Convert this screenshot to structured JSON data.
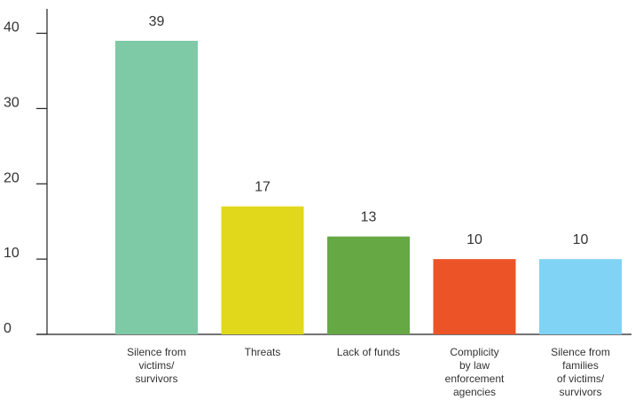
{
  "chart_data": {
    "type": "bar",
    "title": "",
    "xlabel": "",
    "ylabel": "",
    "ylim": [
      0,
      40
    ],
    "yticks": [
      0,
      10,
      20,
      30,
      40
    ],
    "grid": false,
    "categories": [
      "Silence from\nvictims/\nsurvivors",
      "Threats",
      "Lack of funds",
      "Complicity\nby law\nenforcement\nagencies",
      "Silence from\nfamilies\nof victims/\nsurvivors"
    ],
    "values": [
      39,
      17,
      13,
      10,
      10
    ],
    "data_labels": [
      "39",
      "17",
      "13",
      "10",
      "10"
    ],
    "colors": [
      "#7ecaa6",
      "#e2d81b",
      "#66a844",
      "#ec5427",
      "#80d3f5"
    ],
    "axis_color": "#222222"
  }
}
